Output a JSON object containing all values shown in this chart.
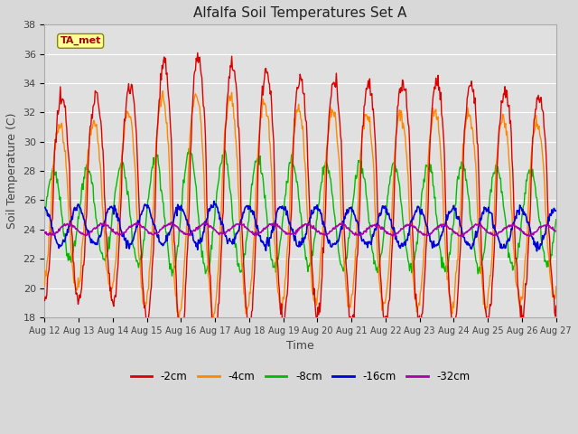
{
  "title": "Alfalfa Soil Temperatures Set A",
  "xlabel": "Time",
  "ylabel": "Soil Temperature (C)",
  "ylim": [
    18,
    38
  ],
  "n_days": 15,
  "xtick_labels": [
    "Aug 12",
    "Aug 13",
    "Aug 14",
    "Aug 15",
    "Aug 16",
    "Aug 17",
    "Aug 18",
    "Aug 19",
    "Aug 20",
    "Aug 21",
    "Aug 22",
    "Aug 23",
    "Aug 24",
    "Aug 25",
    "Aug 26",
    "Aug 27"
  ],
  "ytick_values": [
    18,
    20,
    22,
    24,
    26,
    28,
    30,
    32,
    34,
    36,
    38
  ],
  "background_color": "#d8d8d8",
  "plot_bg_color": "#e0e0e0",
  "grid_color": "#ffffff",
  "legend_entries": [
    "-2cm",
    "-4cm",
    "-8cm",
    "-16cm",
    "-32cm"
  ],
  "colors": {
    "-2cm": "#dd0000",
    "-4cm": "#ff8800",
    "-8cm": "#00bb00",
    "-16cm": "#0000dd",
    "-32cm": "#aa00aa"
  },
  "annotation_text": "TA_met",
  "annotation_color": "#aa0000",
  "annotation_bg": "#ffff99",
  "annotation_border": "#888800",
  "series": {
    "mean_2": 26.0,
    "amp_2": 8.0,
    "phase_2": -1.5707963,
    "mean_4": 25.5,
    "amp_4": 6.5,
    "phase_4": -1.2,
    "mean_8": 25.0,
    "amp_8": 3.5,
    "phase_8": 0.0,
    "mean_16": 24.2,
    "amp_16": 1.3,
    "phase_16": 1.8,
    "mean_32": 24.0,
    "amp_32": 0.35,
    "phase_32": 3.5
  }
}
